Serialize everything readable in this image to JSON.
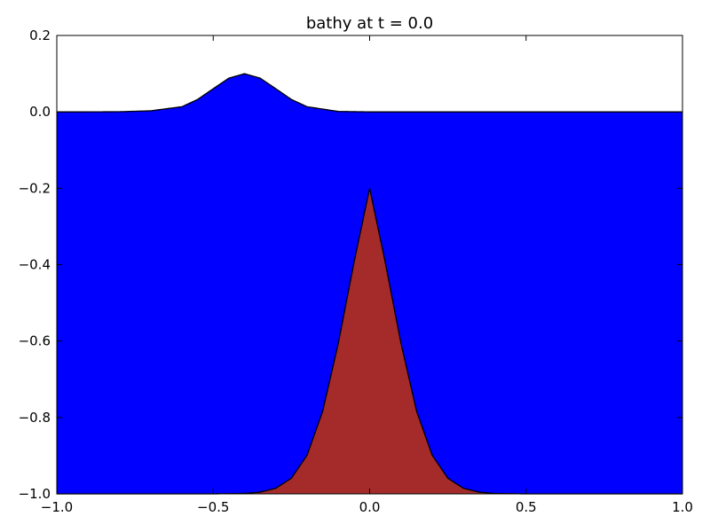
{
  "chart_data": {
    "type": "area",
    "title": "bathy at t = 0.0",
    "xlabel": "",
    "ylabel": "",
    "xlim": [
      -1.0,
      1.0
    ],
    "ylim": [
      -1.0,
      0.2
    ],
    "grid": false,
    "x_ticks": [
      -1.0,
      -0.5,
      0.0,
      0.5,
      1.0
    ],
    "x_tick_labels": [
      "−1.0",
      "−0.5",
      "0.0",
      "0.5",
      "1.0"
    ],
    "y_ticks": [
      0.2,
      0.0,
      -0.2,
      -0.4,
      -0.6,
      -0.8,
      -1.0
    ],
    "y_tick_labels": [
      "0.2",
      "0.0",
      "−0.2",
      "−0.4",
      "−0.6",
      "−0.8",
      "−1.0"
    ],
    "series": [
      {
        "role": "surface",
        "fill_color": "#0000ff",
        "x": [
          -1.0,
          -0.9,
          -0.8,
          -0.7,
          -0.6,
          -0.55,
          -0.5,
          -0.45,
          -0.4,
          -0.35,
          -0.3,
          -0.25,
          -0.2,
          -0.1,
          0.0,
          0.2,
          0.4,
          0.6,
          0.8,
          1.0
        ],
        "y": [
          0.0,
          0.0,
          0.0004,
          0.0028,
          0.0135,
          0.0325,
          0.0607,
          0.0883,
          0.1,
          0.0883,
          0.0607,
          0.0325,
          0.0135,
          0.0011,
          0.0,
          0.0,
          0.0,
          0.0,
          0.0,
          0.0
        ]
      },
      {
        "role": "bathymetry",
        "fill_color": "#a52a2a",
        "x": [
          -1.0,
          -0.5,
          -0.4,
          -0.35,
          -0.3,
          -0.25,
          -0.2,
          -0.15,
          -0.1,
          -0.05,
          0.0,
          0.05,
          0.1,
          0.15,
          0.2,
          0.25,
          0.3,
          0.35,
          0.4,
          0.5,
          1.0
        ],
        "y": [
          -1.0,
          -1.0,
          -0.9989,
          -0.9955,
          -0.9855,
          -0.959,
          -0.8989,
          -0.7835,
          -0.6052,
          -0.3945,
          -0.2,
          -0.3945,
          -0.6052,
          -0.7835,
          -0.8989,
          -0.959,
          -0.9855,
          -0.9955,
          -0.9989,
          -1.0,
          -1.0
        ]
      }
    ]
  }
}
